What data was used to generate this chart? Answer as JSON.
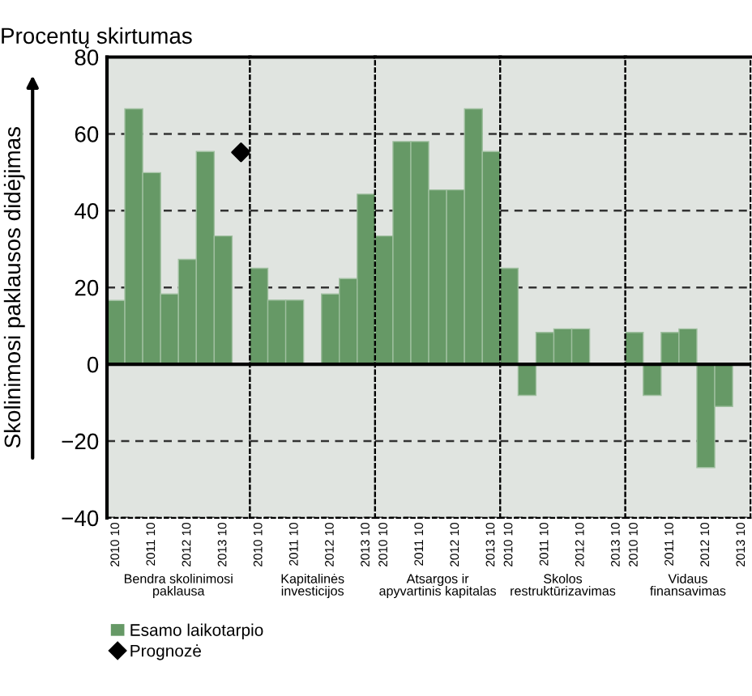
{
  "chart_data": [
    {
      "type": "bar",
      "title": "Procentų skirtumas",
      "ylabel": "Skolinimosi paklausos didėjimas",
      "xlabel": "Bendra skolinimosi\npaklausa",
      "categories": [
        "2010 10",
        null,
        "2011 10",
        null,
        "2012 10",
        null,
        "2013 10",
        null
      ],
      "series": [
        {
          "name": "Esamo laikotarpio",
          "color": "#669966",
          "values": [
            16.6,
            66.5,
            49.9,
            18.3,
            27.3,
            55.4,
            33.4,
            null
          ]
        },
        {
          "name": "Prognozė",
          "type": "scatter",
          "color": "#000000",
          "marker": "diamond",
          "values": [
            null,
            null,
            null,
            null,
            null,
            null,
            null,
            55.2
          ]
        }
      ],
      "ylim": [
        -40,
        80
      ],
      "yticks": [
        {
          "value": -40,
          "label": "−40"
        },
        {
          "value": -20,
          "label": "−20"
        },
        0,
        20,
        40,
        60,
        80
      ],
      "grid": "y",
      "legend": "bottom"
    },
    {
      "type": "bar",
      "xlabel": "Kapitalinės\ninvesticijos",
      "categories": [
        "2010 10",
        null,
        "2011 10",
        null,
        "2012 10",
        null,
        "2013 10"
      ],
      "series": [
        {
          "color": "#669966",
          "values": [
            25,
            16.7,
            16.7,
            null,
            18.3,
            22.3,
            44.3
          ]
        }
      ],
      "ylim": [
        -40,
        80
      ],
      "grid": "y",
      "tick_labels": "x"
    },
    {
      "type": "bar",
      "xlabel": "Atsargos ir\napyvartinis kapitalas",
      "categories": [
        "2010 10",
        null,
        "2011 10",
        null,
        "2012 10",
        null,
        "2013 10"
      ],
      "series": [
        {
          "color": "#669966",
          "values": [
            33.4,
            58,
            58,
            45.4,
            45.4,
            66.5,
            55.4
          ]
        }
      ],
      "ylim": [
        -40,
        80
      ],
      "grid": "y",
      "tick_labels": "x"
    },
    {
      "type": "bar",
      "xlabel": "Skolos\nrestruktūrizavimas",
      "categories": [
        "2010 10",
        null,
        "2011 10",
        null,
        "2012 10",
        null,
        "2013 10"
      ],
      "series": [
        {
          "color": "#669966",
          "values": [
            25,
            -8.1,
            8.3,
            9.2,
            9.2,
            null,
            null
          ]
        }
      ],
      "ylim": [
        -40,
        80
      ],
      "grid": "y",
      "tick_labels": "x"
    },
    {
      "type": "bar",
      "xlabel": "Vidaus\nfinansavimas",
      "categories": [
        "2010 10",
        null,
        "2011 10",
        null,
        "2012 10",
        null,
        "2013 10"
      ],
      "series": [
        {
          "color": "#669966",
          "values": [
            8.3,
            -8.1,
            8.3,
            9.2,
            -26.9,
            -11,
            null
          ]
        }
      ],
      "ylim": [
        -40,
        80
      ],
      "grid": "y",
      "tick_labels": "x"
    }
  ]
}
